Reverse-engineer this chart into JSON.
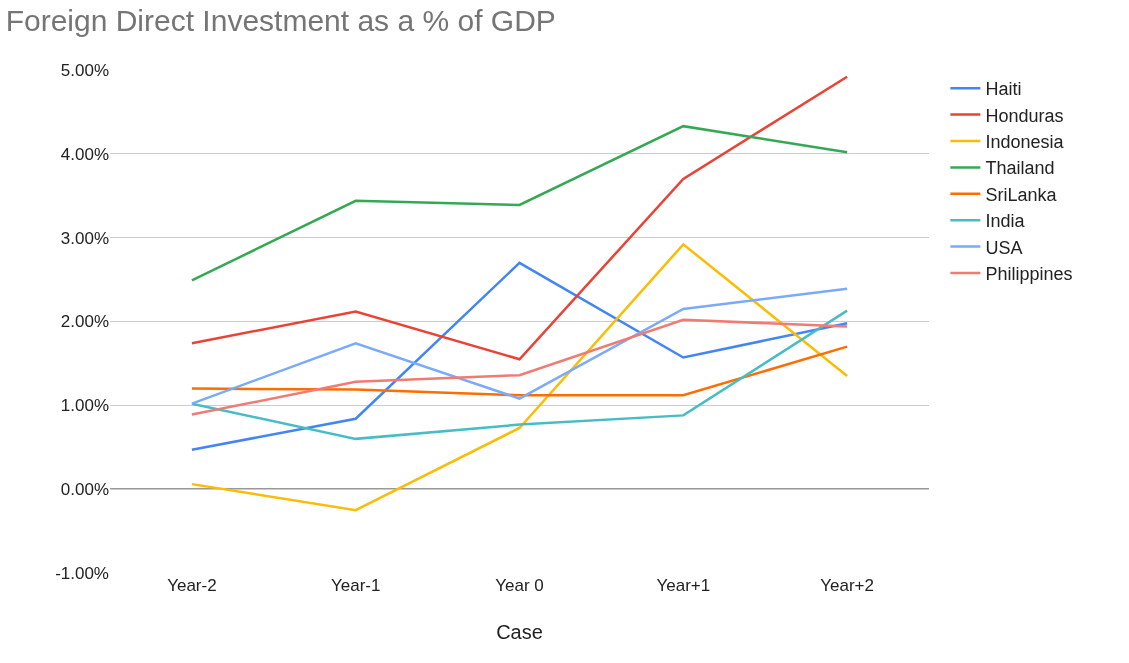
{
  "chart_data": {
    "type": "line",
    "title": "Foreign Direct Investment as a % of GDP",
    "xlabel": "Case",
    "categories": [
      "Year-2",
      "Year-1",
      "Year 0",
      "Year+1",
      "Year+2"
    ],
    "series": [
      {
        "name": "Haiti",
        "color": "#4285f4",
        "values": [
          0.47,
          0.84,
          2.7,
          1.57,
          1.98
        ]
      },
      {
        "name": "Honduras",
        "color": "#ea4335",
        "values": [
          1.74,
          2.12,
          1.55,
          3.7,
          4.92
        ]
      },
      {
        "name": "Indonesia",
        "color": "#fbbc04",
        "values": [
          0.06,
          -0.25,
          0.73,
          2.92,
          1.35
        ]
      },
      {
        "name": "Thailand",
        "color": "#34a853",
        "values": [
          2.49,
          3.44,
          3.39,
          4.33,
          4.02
        ]
      },
      {
        "name": "SriLanka",
        "color": "#ff6d01",
        "values": [
          1.2,
          1.19,
          1.12,
          1.12,
          1.7
        ]
      },
      {
        "name": "India",
        "color": "#46bdc6",
        "values": [
          1.02,
          0.6,
          0.77,
          0.88,
          2.13
        ]
      },
      {
        "name": "USA",
        "color": "#7baaf7",
        "values": [
          1.02,
          1.74,
          1.08,
          2.15,
          2.39
        ]
      },
      {
        "name": "Philippines",
        "color": "#f07b72",
        "values": [
          0.89,
          1.28,
          1.36,
          2.02,
          1.94
        ]
      }
    ],
    "ylim": [
      -1,
      5
    ],
    "yticks": [
      {
        "value": -1,
        "label": "-1.00%"
      },
      {
        "value": 0,
        "label": "0.00%"
      },
      {
        "value": 1,
        "label": "1.00%"
      },
      {
        "value": 2,
        "label": "2.00%"
      },
      {
        "value": 3,
        "label": "3.00%"
      },
      {
        "value": 4,
        "label": "4.00%"
      },
      {
        "value": 5,
        "label": "5.00%"
      }
    ],
    "ref_lines": [
      {
        "axis": "y",
        "value": 0,
        "color": "#333333"
      }
    ],
    "grid": "y",
    "legend": "top right",
    "marker": "none",
    "line_style": "solid"
  }
}
